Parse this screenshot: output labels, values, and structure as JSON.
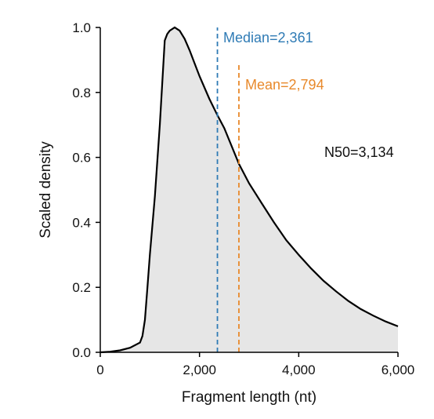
{
  "chart_data": {
    "type": "area",
    "title": "",
    "xlabel": "Fragment length (nt)",
    "ylabel": "Scaled density",
    "xlim": [
      0,
      6000
    ],
    "ylim": [
      0,
      1.0
    ],
    "x_ticks": [
      "0",
      "2,000",
      "4,000",
      "6,000"
    ],
    "x_tick_values": [
      0,
      2000,
      4000,
      6000
    ],
    "y_ticks": [
      "0.0",
      "0.2",
      "0.4",
      "0.6",
      "0.8",
      "1.0"
    ],
    "y_tick_values": [
      0,
      0.2,
      0.4,
      0.6,
      0.8,
      1.0
    ],
    "grid": false,
    "colors": {
      "fill": "#e6e6e6",
      "line": "#000000",
      "median": "#2f7bb5",
      "mean": "#e8892b",
      "annotation": "#111111"
    },
    "series": [
      {
        "x": [
          0,
          200,
          400,
          600,
          800,
          850,
          900,
          950,
          1000,
          1100,
          1200,
          1300,
          1350,
          1400,
          1500,
          1550,
          1600,
          1700,
          1800,
          1900,
          2000,
          2200,
          2361,
          2500,
          2794,
          3000,
          3250,
          3500,
          3750,
          4000,
          4250,
          4500,
          4750,
          5000,
          5250,
          5500,
          5750,
          6000
        ],
        "y": [
          0.0,
          0.002,
          0.006,
          0.014,
          0.03,
          0.05,
          0.1,
          0.2,
          0.3,
          0.48,
          0.7,
          0.96,
          0.98,
          0.99,
          1.0,
          0.995,
          0.99,
          0.965,
          0.93,
          0.89,
          0.85,
          0.78,
          0.73,
          0.69,
          0.58,
          0.52,
          0.46,
          0.4,
          0.345,
          0.3,
          0.258,
          0.22,
          0.188,
          0.158,
          0.133,
          0.113,
          0.095,
          0.08
        ]
      }
    ],
    "reference_lines": [
      {
        "label": "Median=2,361",
        "x": 2361,
        "y_top": 1.0,
        "color": "#2f7bb5",
        "style": "dashed"
      },
      {
        "label": "Mean=2,794",
        "x": 2794,
        "y_top": 0.89,
        "color": "#e8892b",
        "style": "dashed"
      }
    ],
    "annotations": [
      {
        "text": "N50=3,134"
      }
    ]
  }
}
